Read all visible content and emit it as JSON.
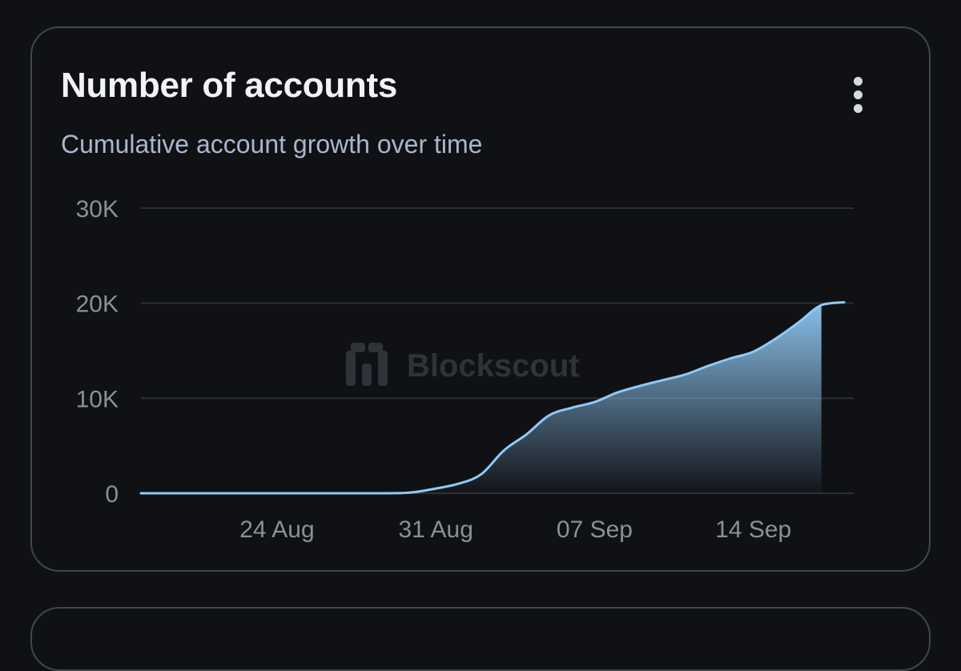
{
  "card": {
    "title": "Number of accounts",
    "subtitle": "Cumulative account growth over time",
    "menu_icon": "vertical-dots-icon",
    "watermark": "Blockscout"
  },
  "colors": {
    "line": "#90caf9",
    "area_top": "#8ec6f2",
    "grid": "#2b2f35",
    "tick_text": "#8a9099"
  },
  "chart_data": {
    "type": "area",
    "title": "Number of accounts",
    "subtitle": "Cumulative account growth over time",
    "xlabel": "",
    "ylabel": "",
    "x_range": [
      "2025-08-18",
      "2025-09-18"
    ],
    "ylim": [
      0,
      30000
    ],
    "y_ticks": [
      0,
      10000,
      20000,
      30000
    ],
    "y_tick_labels": [
      "0",
      "10K",
      "20K",
      "30K"
    ],
    "x_ticks": [
      "2025-08-24",
      "2025-08-31",
      "2025-09-07",
      "2025-09-14"
    ],
    "x_tick_labels": [
      "24 Aug",
      "31 Aug",
      "07 Sep",
      "14 Sep"
    ],
    "grid": true,
    "legend": "none",
    "series": [
      {
        "x": [
          "2025-08-18",
          "2025-08-19",
          "2025-08-20",
          "2025-08-21",
          "2025-08-22",
          "2025-08-23",
          "2025-08-24",
          "2025-08-25",
          "2025-08-26",
          "2025-08-27",
          "2025-08-28",
          "2025-08-29",
          "2025-08-30",
          "2025-08-31",
          "2025-09-01",
          "2025-09-02",
          "2025-09-03",
          "2025-09-04",
          "2025-09-05",
          "2025-09-06",
          "2025-09-07",
          "2025-09-08",
          "2025-09-09",
          "2025-09-10",
          "2025-09-11",
          "2025-09-12",
          "2025-09-13",
          "2025-09-14",
          "2025-09-15",
          "2025-09-16",
          "2025-09-17",
          "2025-09-18"
        ],
        "values": [
          0,
          0,
          0,
          0,
          0,
          0,
          0,
          0,
          0,
          0,
          0,
          0,
          100,
          500,
          1000,
          2000,
          4500,
          6200,
          8200,
          9000,
          9600,
          10600,
          11300,
          11900,
          12500,
          13400,
          14200,
          14900,
          16300,
          18000,
          19800,
          20100
        ]
      }
    ]
  }
}
